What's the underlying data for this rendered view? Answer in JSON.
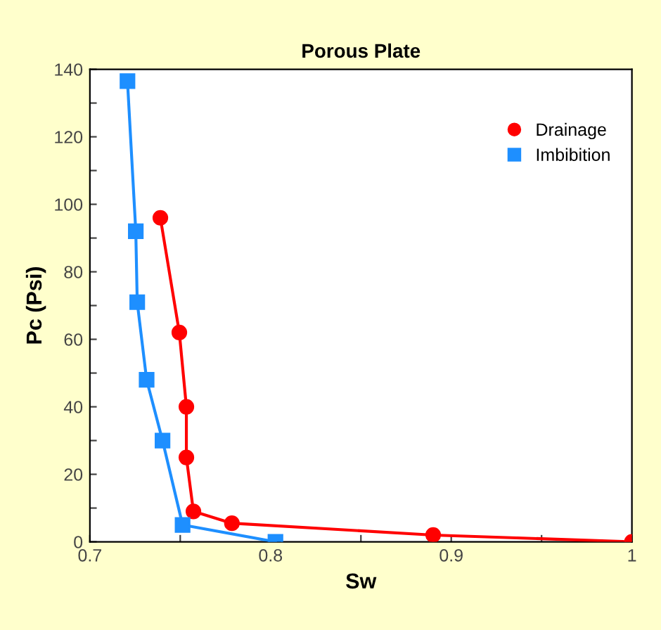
{
  "chart_data": {
    "type": "line",
    "title": "Porous Plate",
    "xlabel": "Sw",
    "ylabel": "Pc (Psi)",
    "xlim": [
      0.7,
      1
    ],
    "ylim": [
      0,
      140
    ],
    "xticks": [
      {
        "value": 0.7,
        "label": "0.7"
      },
      {
        "value": 0.75,
        "label": null
      },
      {
        "value": 0.8,
        "label": "0.8"
      },
      {
        "value": 0.85,
        "label": null
      },
      {
        "value": 0.9,
        "label": "0.9"
      },
      {
        "value": 0.95,
        "label": null
      },
      {
        "value": 1,
        "label": "1"
      }
    ],
    "yticks": [
      0,
      {
        "value": 10,
        "label": null
      },
      20,
      {
        "value": 30,
        "label": null
      },
      40,
      {
        "value": 50,
        "label": null
      },
      60,
      {
        "value": 70,
        "label": null
      },
      80,
      {
        "value": 90,
        "label": null
      },
      100,
      {
        "value": 110,
        "label": null
      },
      120,
      {
        "value": 130,
        "label": null
      },
      140
    ],
    "grid": false,
    "legend": "top right",
    "series": [
      {
        "name": "Drainage",
        "color": "#ff0000",
        "marker": "circle",
        "x": [
          0.739,
          0.7495,
          0.7534,
          0.7534,
          0.7573,
          0.7786,
          0.89,
          1.0
        ],
        "values": [
          96,
          62,
          40,
          25,
          9,
          5.5,
          2,
          0
        ]
      },
      {
        "name": "Imbibition",
        "color": "#1e8fff",
        "marker": "square",
        "x": [
          0.7208,
          0.7254,
          0.7262,
          0.7314,
          0.7402,
          0.7513,
          0.8027
        ],
        "values": [
          136.5,
          92,
          71,
          48,
          30,
          5,
          0
        ]
      }
    ]
  }
}
